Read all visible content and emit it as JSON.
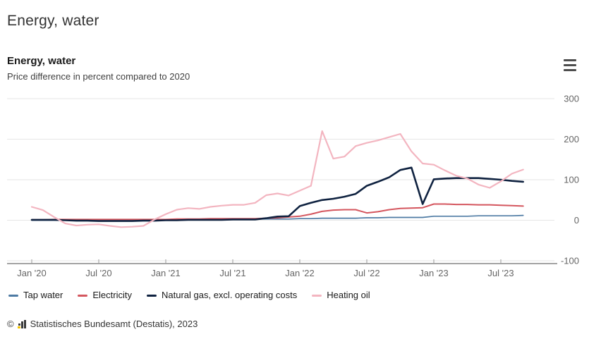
{
  "page_title": "Energy, water",
  "chart": {
    "title": "Energy, water",
    "subtitle": "Price difference in percent compared to 2020"
  },
  "footer": {
    "copyright": "©",
    "credit": "Statistisches Bundesamt (Destatis), 2023"
  },
  "chart_data": {
    "type": "line",
    "title": "Energy, water",
    "subtitle": "Price difference in percent compared to 2020",
    "ylabel": "Price difference in percent compared to 2020",
    "ylim": [
      -100,
      300
    ],
    "y_ticks": [
      300,
      200,
      100,
      0,
      -100
    ],
    "grid": true,
    "legend_position": "bottom",
    "x_range": [
      "Jan 2020",
      "Sep 2023"
    ],
    "points_per_month": 1,
    "n_points": 45,
    "x_tick_labels": [
      "Jan '20",
      "Jul '20",
      "Jan '21",
      "Jul '21",
      "Jan '22",
      "Jul '22",
      "Jan '23",
      "Jul '23"
    ],
    "x_tick_indices": [
      0,
      6,
      12,
      18,
      24,
      30,
      36,
      42
    ],
    "series": [
      {
        "name": "Tap water",
        "color": "#4d7aa3",
        "width": 1.7,
        "values": [
          0,
          0,
          0,
          0,
          1,
          1,
          1,
          1,
          1,
          1,
          1,
          1,
          2,
          2,
          2,
          2,
          3,
          3,
          3,
          3,
          3,
          3,
          3,
          3,
          4,
          4,
          5,
          5,
          5,
          5,
          6,
          6,
          7,
          7,
          7,
          7,
          10,
          10,
          10,
          10,
          11,
          11,
          11,
          11,
          12
        ]
      },
      {
        "name": "Electricity",
        "color": "#d4565e",
        "width": 2,
        "values": [
          1,
          1,
          2,
          2,
          2,
          2,
          2,
          2,
          2,
          2,
          2,
          2,
          2,
          3,
          3,
          3,
          4,
          4,
          4,
          4,
          4,
          5,
          6,
          8,
          10,
          15,
          22,
          25,
          26,
          26,
          18,
          21,
          26,
          29,
          30,
          31,
          40,
          40,
          39,
          39,
          38,
          38,
          37,
          36,
          35
        ]
      },
      {
        "name": "Natural gas, excl. operating costs",
        "color": "#0f2240",
        "width": 2.6,
        "values": [
          1,
          1,
          1,
          0,
          -1,
          -1,
          -2,
          -2,
          -2,
          -2,
          -1,
          -1,
          0,
          0,
          1,
          1,
          1,
          1,
          2,
          2,
          2,
          5,
          9,
          10,
          35,
          43,
          50,
          53,
          58,
          65,
          85,
          95,
          106,
          124,
          130,
          40,
          101,
          103,
          104,
          104,
          104,
          102,
          100,
          97,
          95
        ]
      },
      {
        "name": "Heating oil",
        "color": "#f3b5c0",
        "width": 2.2,
        "values": [
          33,
          25,
          8,
          -8,
          -13,
          -11,
          -10,
          -14,
          -17,
          -16,
          -14,
          2,
          15,
          26,
          30,
          28,
          33,
          36,
          38,
          38,
          43,
          62,
          66,
          61,
          73,
          85,
          220,
          152,
          157,
          183,
          191,
          197,
          205,
          213,
          170,
          140,
          137,
          123,
          110,
          103,
          88,
          80,
          96,
          115,
          125
        ]
      }
    ]
  }
}
